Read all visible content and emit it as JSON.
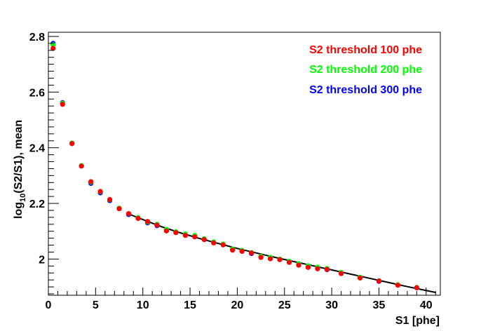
{
  "chart_data": {
    "type": "scatter",
    "title": "",
    "xlabel": "S1 [phe]",
    "ylabel_prefix": "log",
    "ylabel_sub": "10",
    "ylabel_suffix": "(S2/S1), mean",
    "xlim": [
      0,
      41.5
    ],
    "ylim": [
      1.87,
      2.815
    ],
    "x_major_ticks": [
      0,
      5,
      10,
      15,
      20,
      25,
      30,
      35,
      40
    ],
    "x_tick_labels": [
      "0",
      "5",
      "10",
      "15",
      "20",
      "25",
      "30",
      "35",
      "40"
    ],
    "y_major_ticks": [
      2.0,
      2.2,
      2.4,
      2.6,
      2.8
    ],
    "y_tick_labels": [
      "2",
      "2.2",
      "2.4",
      "2.6",
      "2.8"
    ],
    "legend_position": "top-right",
    "series": [
      {
        "name": "S2 threshold 300 phe",
        "color": "#0000ff",
        "x": [
          0.5,
          1.5,
          2.5,
          3.5,
          4.5,
          5.5,
          6.5,
          7.5,
          8.5,
          9.5,
          10.5,
          11.5,
          12.5,
          13.5,
          14.5,
          15.5,
          16.5,
          17.5,
          18.5,
          19.5,
          20.5,
          21.5,
          22.5,
          23.5,
          24.5,
          25.5,
          26.5,
          27.5,
          28.5,
          29.5,
          31,
          33,
          35,
          37,
          39
        ],
        "y": [
          2.775,
          2.562,
          2.415,
          2.335,
          2.272,
          2.238,
          2.21,
          2.181,
          2.16,
          2.147,
          2.13,
          2.12,
          2.105,
          2.097,
          2.088,
          2.08,
          2.07,
          2.06,
          2.052,
          2.034,
          2.028,
          2.02,
          2.008,
          2.003,
          1.998,
          1.99,
          1.98,
          1.972,
          1.968,
          1.962,
          1.95,
          1.933,
          1.92,
          1.907,
          1.897
        ]
      },
      {
        "name": "S2 threshold 200 phe",
        "color": "#00ff00",
        "x": [
          0.5,
          1.5,
          2.5,
          3.5,
          4.5,
          5.5,
          6.5,
          7.5,
          8.5,
          9.5,
          10.5,
          11.5,
          12.5,
          13.5,
          14.5,
          15.5,
          16.5,
          17.5,
          18.5,
          19.5,
          20.5,
          21.5,
          22.5,
          23.5,
          24.5,
          25.5,
          26.5,
          27.5,
          28.5,
          29.5,
          31,
          33,
          35,
          37,
          39
        ],
        "y": [
          2.77,
          2.56,
          2.417,
          2.336,
          2.276,
          2.242,
          2.213,
          2.183,
          2.163,
          2.149,
          2.133,
          2.125,
          2.107,
          2.098,
          2.09,
          2.085,
          2.073,
          2.062,
          2.054,
          2.036,
          2.031,
          2.023,
          2.01,
          2.006,
          2.0,
          1.992,
          1.983,
          1.976,
          1.971,
          1.966,
          1.952,
          1.935,
          1.922,
          1.908,
          1.898
        ]
      },
      {
        "name": "S2 threshold 100 phe",
        "color": "#ff0000",
        "x": [
          0.5,
          1.5,
          2.5,
          3.5,
          4.5,
          5.5,
          6.5,
          7.5,
          8.5,
          9.5,
          10.5,
          11.5,
          12.5,
          13.5,
          14.5,
          15.5,
          16.5,
          17.5,
          18.5,
          19.5,
          20.5,
          21.5,
          22.5,
          23.5,
          24.5,
          25.5,
          26.5,
          27.5,
          28.5,
          29.5,
          31,
          33,
          35,
          37,
          39
        ],
        "y": [
          2.757,
          2.556,
          2.415,
          2.334,
          2.278,
          2.243,
          2.214,
          2.181,
          2.163,
          2.146,
          2.135,
          2.122,
          2.101,
          2.095,
          2.085,
          2.08,
          2.07,
          2.058,
          2.051,
          2.032,
          2.028,
          2.022,
          2.006,
          2.001,
          1.998,
          1.988,
          1.978,
          1.97,
          1.965,
          1.963,
          1.948,
          1.932,
          1.921,
          1.906,
          1.897
        ]
      }
    ],
    "fit_curve": {
      "color": "#000000",
      "x": [
        8.5,
        10,
        12,
        14,
        16,
        18,
        20,
        22,
        24,
        26,
        28,
        30,
        32,
        34,
        36,
        38,
        40,
        41
      ],
      "y": [
        2.162,
        2.142,
        2.116,
        2.094,
        2.074,
        2.056,
        2.038,
        2.022,
        2.006,
        1.991,
        1.976,
        1.961,
        1.946,
        1.931,
        1.916,
        1.901,
        1.887,
        1.88
      ]
    }
  }
}
